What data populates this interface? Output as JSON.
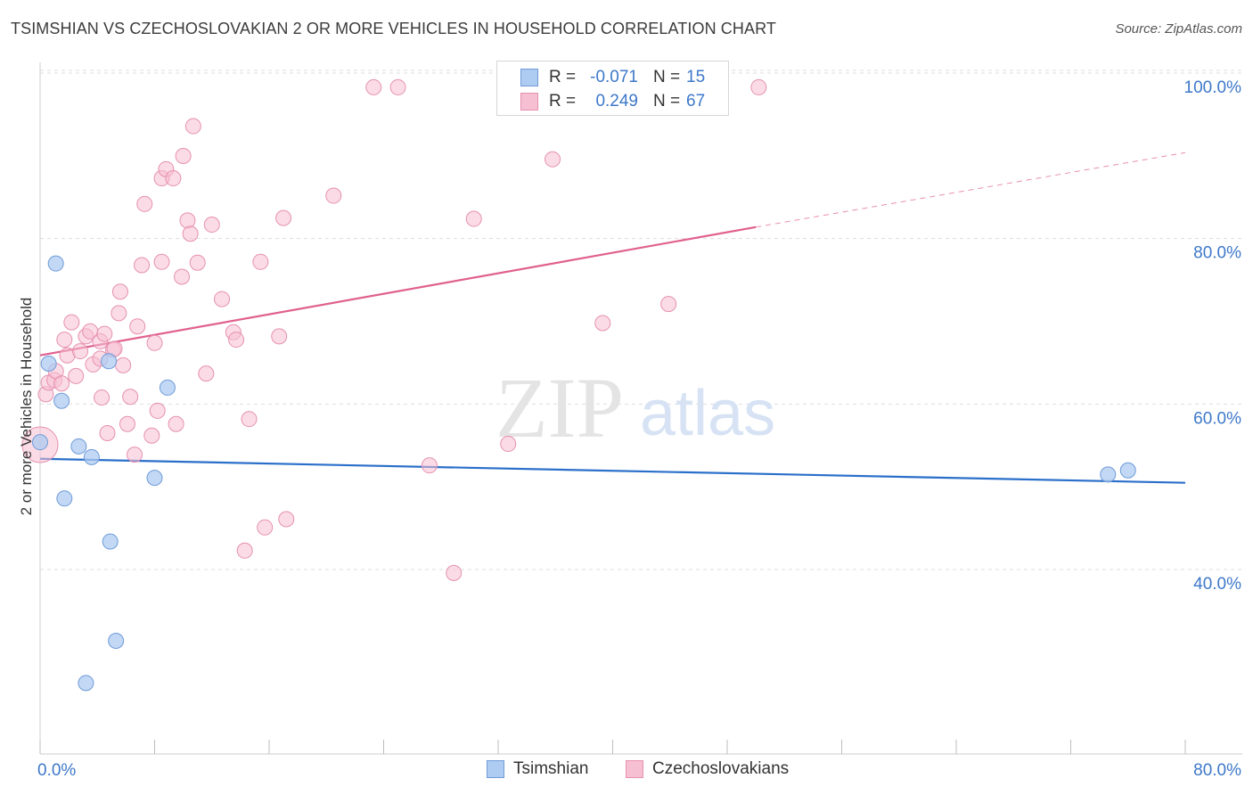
{
  "title": "TSIMSHIAN VS CZECHOSLOVAKIAN 2 OR MORE VEHICLES IN HOUSEHOLD CORRELATION CHART",
  "source": "Source: ZipAtlas.com",
  "watermark": {
    "zip": "ZIP",
    "atlas": "atlas"
  },
  "legend": {
    "rows": [
      {
        "r_label": "R =",
        "r_value": "-0.071",
        "n_label": "N =",
        "n_value": "15"
      },
      {
        "r_label": "R =",
        "r_value": "0.249",
        "n_label": "N =",
        "n_value": "67"
      }
    ]
  },
  "bottom_legend": {
    "series1": "Tsimshian",
    "series2": "Czechoslovakians"
  },
  "colors": {
    "tsimshian_fill": "#aecbf2",
    "tsimshian_stroke": "#6f9bd8",
    "tsimshian_line": "#2a6fca",
    "czech_fill": "#f7bfd2",
    "czech_stroke": "#e690b0",
    "czech_line": "#e0608e",
    "axis_label": "#3d78c9",
    "grid": "#dddddd"
  },
  "chart_data": {
    "type": "scatter",
    "title": "TSIMSHIAN VS CZECHOSLOVAKIAN 2 OR MORE VEHICLES IN HOUSEHOLD CORRELATION CHART",
    "xlabel": "",
    "ylabel": "2 or more Vehicles in Household",
    "xlim": [
      0,
      80
    ],
    "ylim": [
      20,
      103
    ],
    "x_tick_labels": [
      {
        "value": 0,
        "label": "0.0%"
      },
      {
        "value": 80,
        "label": "80.0%"
      }
    ],
    "y_tick_labels": [
      {
        "value": 40,
        "label": "40.0%"
      },
      {
        "value": 60,
        "label": "60.0%"
      },
      {
        "value": 80,
        "label": "80.0%"
      },
      {
        "value": 100,
        "label": "100.0%"
      }
    ],
    "grid": true,
    "series": [
      {
        "name": "Tsimshian",
        "r": -0.071,
        "n": 15,
        "trend": {
          "x0": 0,
          "y0": 55.0,
          "x1": 80,
          "y1": 52.1
        },
        "points": [
          {
            "x": 0.0,
            "y": 57.0
          },
          {
            "x": 0.6,
            "y": 66.5
          },
          {
            "x": 1.1,
            "y": 78.6
          },
          {
            "x": 1.5,
            "y": 62.0
          },
          {
            "x": 1.7,
            "y": 50.2
          },
          {
            "x": 2.7,
            "y": 56.5
          },
          {
            "x": 3.2,
            "y": 27.9
          },
          {
            "x": 3.6,
            "y": 55.2
          },
          {
            "x": 4.8,
            "y": 66.8
          },
          {
            "x": 4.9,
            "y": 45.0
          },
          {
            "x": 5.3,
            "y": 33.0
          },
          {
            "x": 8.0,
            "y": 52.7
          },
          {
            "x": 8.9,
            "y": 63.6
          },
          {
            "x": 74.6,
            "y": 53.1
          },
          {
            "x": 76.0,
            "y": 53.6
          }
        ]
      },
      {
        "name": "Czechoslovakians",
        "r": 0.249,
        "n": 67,
        "trend": {
          "x0": 0,
          "y0": 67.5,
          "x1": 50,
          "y1": 83.0,
          "dash_x1": 80,
          "dash_y1": 92.0
        },
        "points": [
          {
            "x": 0.0,
            "y": 56.7,
            "big": true
          },
          {
            "x": 0.4,
            "y": 62.8
          },
          {
            "x": 0.6,
            "y": 64.2
          },
          {
            "x": 1.0,
            "y": 64.5
          },
          {
            "x": 1.1,
            "y": 65.6
          },
          {
            "x": 1.5,
            "y": 64.1
          },
          {
            "x": 1.7,
            "y": 69.4
          },
          {
            "x": 1.9,
            "y": 67.5
          },
          {
            "x": 2.2,
            "y": 71.5
          },
          {
            "x": 2.5,
            "y": 65.0
          },
          {
            "x": 2.8,
            "y": 68.0
          },
          {
            "x": 3.2,
            "y": 69.8
          },
          {
            "x": 3.5,
            "y": 70.4
          },
          {
            "x": 3.7,
            "y": 66.4
          },
          {
            "x": 4.2,
            "y": 69.2
          },
          {
            "x": 4.2,
            "y": 67.1
          },
          {
            "x": 4.3,
            "y": 62.4
          },
          {
            "x": 4.5,
            "y": 70.1
          },
          {
            "x": 4.7,
            "y": 58.1
          },
          {
            "x": 5.1,
            "y": 68.2
          },
          {
            "x": 5.2,
            "y": 68.3
          },
          {
            "x": 5.5,
            "y": 72.6
          },
          {
            "x": 5.6,
            "y": 75.2
          },
          {
            "x": 5.8,
            "y": 66.3
          },
          {
            "x": 6.1,
            "y": 59.2
          },
          {
            "x": 6.3,
            "y": 62.5
          },
          {
            "x": 6.6,
            "y": 55.5
          },
          {
            "x": 6.8,
            "y": 71.0
          },
          {
            "x": 7.1,
            "y": 78.4
          },
          {
            "x": 7.3,
            "y": 85.8
          },
          {
            "x": 7.8,
            "y": 57.8
          },
          {
            "x": 8.0,
            "y": 69.0
          },
          {
            "x": 8.2,
            "y": 60.8
          },
          {
            "x": 8.5,
            "y": 78.8
          },
          {
            "x": 8.5,
            "y": 88.9
          },
          {
            "x": 8.8,
            "y": 90.0
          },
          {
            "x": 9.3,
            "y": 88.9
          },
          {
            "x": 9.5,
            "y": 59.2
          },
          {
            "x": 9.9,
            "y": 77.0
          },
          {
            "x": 10.0,
            "y": 91.6
          },
          {
            "x": 10.3,
            "y": 83.8
          },
          {
            "x": 10.5,
            "y": 82.2
          },
          {
            "x": 10.7,
            "y": 95.2
          },
          {
            "x": 11.0,
            "y": 78.7
          },
          {
            "x": 11.6,
            "y": 65.3
          },
          {
            "x": 12.0,
            "y": 83.3
          },
          {
            "x": 12.7,
            "y": 74.3
          },
          {
            "x": 13.5,
            "y": 70.3
          },
          {
            "x": 13.7,
            "y": 69.4
          },
          {
            "x": 14.6,
            "y": 59.8
          },
          {
            "x": 14.3,
            "y": 43.9
          },
          {
            "x": 15.4,
            "y": 78.8
          },
          {
            "x": 15.7,
            "y": 46.7
          },
          {
            "x": 16.7,
            "y": 69.8
          },
          {
            "x": 17.0,
            "y": 84.1
          },
          {
            "x": 17.2,
            "y": 47.7
          },
          {
            "x": 20.5,
            "y": 86.8
          },
          {
            "x": 23.3,
            "y": 99.9
          },
          {
            "x": 25.0,
            "y": 99.9
          },
          {
            "x": 27.2,
            "y": 54.2
          },
          {
            "x": 28.9,
            "y": 41.2
          },
          {
            "x": 30.3,
            "y": 84.0
          },
          {
            "x": 32.7,
            "y": 56.8
          },
          {
            "x": 35.8,
            "y": 91.2
          },
          {
            "x": 39.3,
            "y": 71.4
          },
          {
            "x": 43.9,
            "y": 73.7
          },
          {
            "x": 50.2,
            "y": 99.9
          }
        ]
      }
    ]
  }
}
